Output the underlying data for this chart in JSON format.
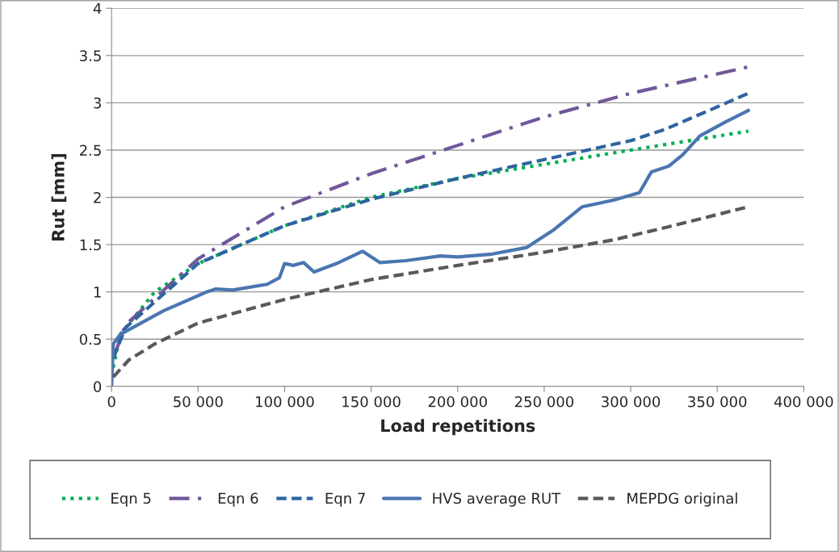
{
  "chart_data": {
    "type": "line",
    "xlabel": "Load repetitions",
    "ylabel": "Rut [mm]",
    "xlim": [
      0,
      400000
    ],
    "xticks": [
      {
        "value": 0,
        "label": "0"
      },
      {
        "value": 50000,
        "label": "50 000"
      },
      {
        "value": 100000,
        "label": "100 000"
      },
      {
        "value": 150000,
        "label": "150 000"
      },
      {
        "value": 200000,
        "label": "200 000"
      },
      {
        "value": 250000,
        "label": "250 000"
      },
      {
        "value": 300000,
        "label": "300 000"
      },
      {
        "value": 350000,
        "label": "350 000"
      },
      {
        "value": 400000,
        "label": "400 000"
      }
    ],
    "ylim": [
      0,
      4
    ],
    "yticks": [
      0,
      0.5,
      1,
      1.5,
      2,
      2.5,
      3,
      3.5,
      4
    ],
    "grid": "y",
    "legend": "bottom",
    "marker": "none",
    "series": [
      {
        "name": "Eqn 5",
        "color": "#00b050",
        "line_style": "dotted",
        "x": [
          1000,
          5000,
          25000,
          50000,
          100000,
          150000,
          200000,
          250000,
          300000,
          368000
        ],
        "values": [
          0.2,
          0.55,
          1.0,
          1.3,
          1.7,
          2.0,
          2.2,
          2.35,
          2.5,
          2.7
        ]
      },
      {
        "name": "Eqn 6",
        "color": "#71589a",
        "line_style": "dashdot",
        "x": [
          1000,
          8000,
          50000,
          100000,
          150000,
          200000,
          250000,
          300000,
          368000
        ],
        "values": [
          0.3,
          0.65,
          1.35,
          1.9,
          2.25,
          2.55,
          2.85,
          3.1,
          3.38
        ]
      },
      {
        "name": "Eqn 7",
        "color": "#2e64a0",
        "line_style": "dashed",
        "x": [
          1000,
          8000,
          50000,
          100000,
          150000,
          200000,
          250000,
          300000,
          320000,
          368000
        ],
        "values": [
          0.3,
          0.62,
          1.3,
          1.7,
          1.98,
          2.2,
          2.4,
          2.6,
          2.72,
          3.1
        ]
      },
      {
        "name": "HVS average RUT",
        "color": "#4a76b0",
        "line_style": "solid",
        "x": [
          0,
          1000,
          5000,
          30000,
          55000,
          60000,
          70000,
          90000,
          97000,
          100000,
          105000,
          111000,
          117000,
          130000,
          145000,
          155000,
          170000,
          190000,
          200000,
          220000,
          240000,
          255000,
          272000,
          290000,
          305000,
          312000,
          322000,
          330000,
          340000,
          355000,
          368000
        ],
        "values": [
          0,
          0.45,
          0.55,
          0.8,
          1.0,
          1.03,
          1.02,
          1.08,
          1.15,
          1.3,
          1.28,
          1.31,
          1.21,
          1.3,
          1.43,
          1.31,
          1.33,
          1.38,
          1.37,
          1.4,
          1.47,
          1.65,
          1.9,
          1.97,
          2.05,
          2.27,
          2.33,
          2.45,
          2.65,
          2.8,
          2.92
        ]
      },
      {
        "name": "MEPDG original",
        "color": "#595959",
        "line_style": "dashed",
        "x": [
          1000,
          10000,
          25000,
          50000,
          100000,
          150000,
          200000,
          250000,
          290000,
          320000,
          368000
        ],
        "values": [
          0.1,
          0.28,
          0.45,
          0.67,
          0.92,
          1.13,
          1.28,
          1.42,
          1.55,
          1.68,
          1.9
        ]
      }
    ]
  }
}
